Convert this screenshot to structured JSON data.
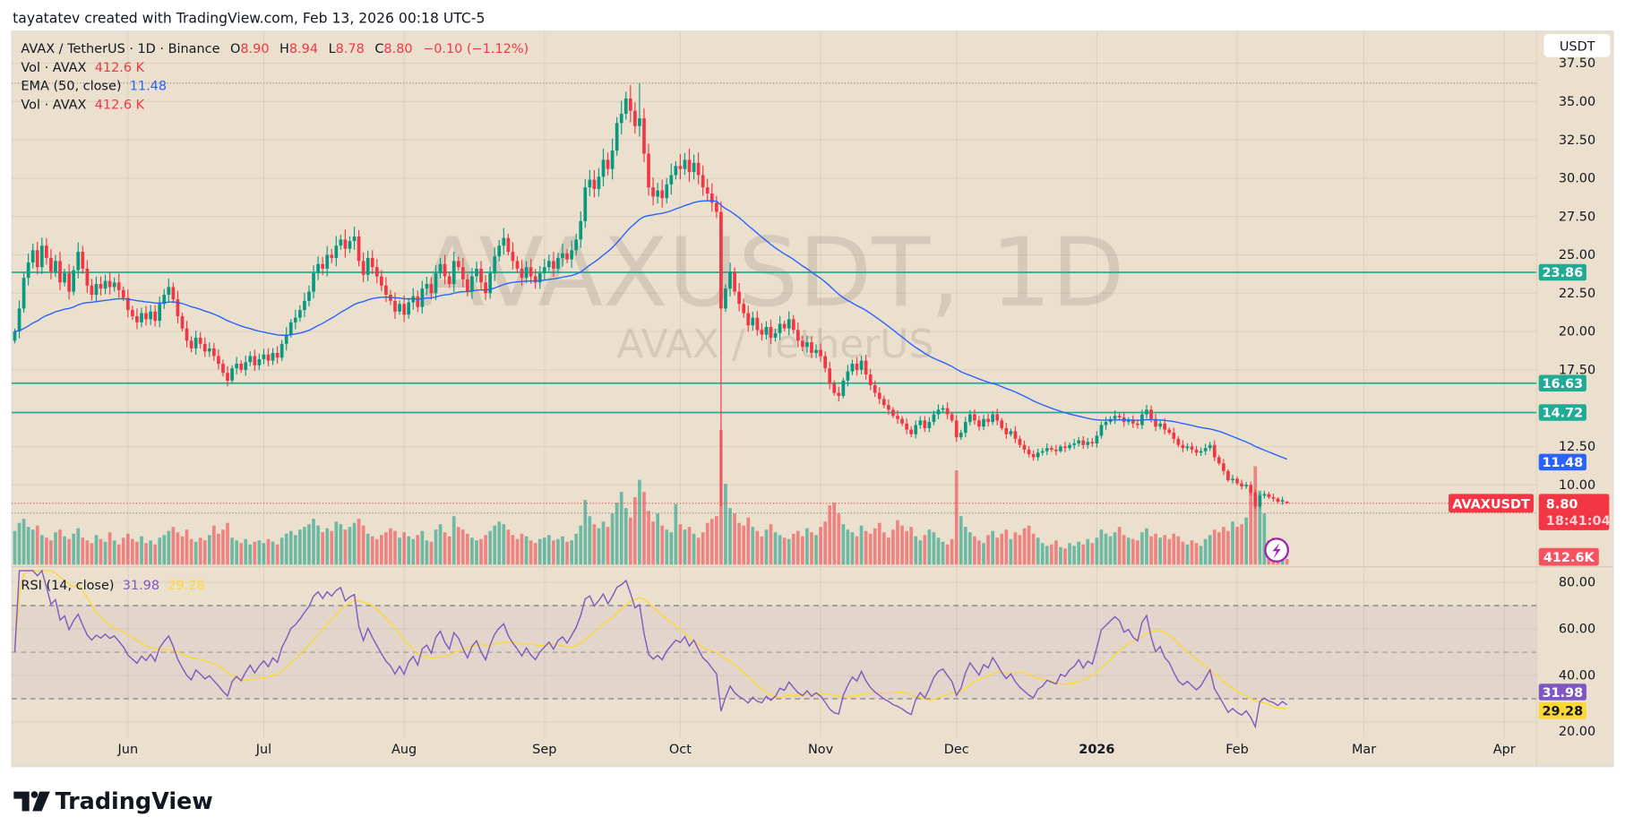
{
  "header": {
    "caption": "tayatatev created with TradingView.com, Feb 13, 2026 00:18 UTC-5"
  },
  "legend": {
    "symbol": "AVAX / TetherUS · 1D · Binance",
    "o_label": "O",
    "o": "8.90",
    "h_label": "H",
    "h": "8.94",
    "l_label": "L",
    "l": "8.78",
    "c_label": "C",
    "c": "8.80",
    "change": "−0.10 (−1.12%)",
    "vol1_label": "Vol · AVAX",
    "vol1_value": "412.6 K",
    "ema_label": "EMA (50, close)",
    "ema_value": "11.48",
    "vol2_label": "Vol · AVAX",
    "vol2_value": "412.6 K",
    "rsi_label": "RSI (14, close)",
    "rsi_value": "31.98",
    "rsi_ma_value": "29.28"
  },
  "watermark": {
    "line1": "AVAXUSDT, 1D",
    "line2": "AVAX / TetherUS"
  },
  "currency_button": "USDT",
  "brand": "TradingView",
  "colors": {
    "up": "#089981",
    "down": "#f23645",
    "ema": "#2962ff",
    "hline": "#22ab94",
    "rsi": "#7e57c2",
    "rsi_ma": "#fdd835",
    "background": "#ebe0cd"
  },
  "tags": {
    "symbol_tag": "AVAXUSDT",
    "last_price": "8.80",
    "countdown": "18:41:04",
    "ema": "11.48",
    "volume": "412.6K",
    "rsi": "31.98",
    "rsi_ma": "29.28"
  },
  "icons": {
    "alert": "lightning-icon"
  },
  "chart_data": {
    "type": "candlestick",
    "interval": "1D",
    "start_date": "2025-05-07",
    "close": [
      20.0,
      21.5,
      23.5,
      24.5,
      25.3,
      24.2,
      25.6,
      24.8,
      23.9,
      24.6,
      23.2,
      23.8,
      22.6,
      24.0,
      25.2,
      24.1,
      23.0,
      22.4,
      23.1,
      22.8,
      23.3,
      22.9,
      23.2,
      22.7,
      22.2,
      21.4,
      21.0,
      20.6,
      21.2,
      20.8,
      21.3,
      20.7,
      21.8,
      22.4,
      22.9,
      22.1,
      21.0,
      20.2,
      19.4,
      18.9,
      19.6,
      19.2,
      18.7,
      18.9,
      18.4,
      17.9,
      17.3,
      16.8,
      17.6,
      17.9,
      17.5,
      18.0,
      18.4,
      17.8,
      18.2,
      18.5,
      18.1,
      18.6,
      18.3,
      19.2,
      19.8,
      20.6,
      20.9,
      21.4,
      22.0,
      22.6,
      23.8,
      24.4,
      24.1,
      25.0,
      24.8,
      25.6,
      26.0,
      25.4,
      25.9,
      26.2,
      24.6,
      23.7,
      24.8,
      24.2,
      23.6,
      23.0,
      22.4,
      22.0,
      21.3,
      21.8,
      21.1,
      21.9,
      22.3,
      21.6,
      22.8,
      23.1,
      22.5,
      23.8,
      24.4,
      23.6,
      23.1,
      24.6,
      24.2,
      23.4,
      22.6,
      23.6,
      24.1,
      23.2,
      22.5,
      23.8,
      24.9,
      25.6,
      26.1,
      25.2,
      24.6,
      24.1,
      23.5,
      24.2,
      23.6,
      23.2,
      23.8,
      24.2,
      24.6,
      24.1,
      24.8,
      25.1,
      24.7,
      25.3,
      26.0,
      27.2,
      29.4,
      29.9,
      29.3,
      30.1,
      31.2,
      30.6,
      31.8,
      33.6,
      34.2,
      35.2,
      34.4,
      33.4,
      33.9,
      31.6,
      29.4,
      28.8,
      29.2,
      28.7,
      29.6,
      30.2,
      30.8,
      30.6,
      31.2,
      30.4,
      31.0,
      30.2,
      29.4,
      29.0,
      28.4,
      27.8,
      21.5,
      22.8,
      23.9,
      22.6,
      21.8,
      21.2,
      20.4,
      20.9,
      20.1,
      19.8,
      20.3,
      19.6,
      19.9,
      20.5,
      20.2,
      20.8,
      20.1,
      19.4,
      19.0,
      19.3,
      18.6,
      18.8,
      18.4,
      17.6,
      16.6,
      16.0,
      15.8,
      16.8,
      17.4,
      17.9,
      17.5,
      18.1,
      17.2,
      16.5,
      16.0,
      15.6,
      15.2,
      14.9,
      14.5,
      14.3,
      14.0,
      13.6,
      13.3,
      13.9,
      14.2,
      13.7,
      14.1,
      14.6,
      14.9,
      15.0,
      14.6,
      14.2,
      13.1,
      13.4,
      14.1,
      14.6,
      14.2,
      13.8,
      14.3,
      14.1,
      14.6,
      14.2,
      13.7,
      13.3,
      13.5,
      13.0,
      12.6,
      12.3,
      12.0,
      11.8,
      12.1,
      12.2,
      12.4,
      12.3,
      12.2,
      12.5,
      12.4,
      12.6,
      12.7,
      12.9,
      12.6,
      12.8,
      12.7,
      13.2,
      13.9,
      14.1,
      14.3,
      14.5,
      14.4,
      14.1,
      14.2,
      14.0,
      13.9,
      14.6,
      14.9,
      14.3,
      13.8,
      14.0,
      13.6,
      13.4,
      13.0,
      12.6,
      12.4,
      12.5,
      12.3,
      12.1,
      12.2,
      12.4,
      12.6,
      11.8,
      11.4,
      10.9,
      10.3,
      10.4,
      10.1,
      9.9,
      10.0,
      9.5,
      8.6,
      9.3,
      9.4,
      9.2,
      9.1,
      8.9,
      9.0,
      8.8
    ],
    "volume_millions": [
      2.5,
      3.1,
      3.4,
      2.8,
      2.6,
      2.9,
      2.2,
      2.0,
      1.8,
      2.4,
      2.6,
      2.1,
      1.9,
      2.3,
      2.7,
      2.0,
      1.8,
      1.6,
      2.2,
      1.9,
      1.7,
      2.4,
      1.8,
      1.5,
      2.0,
      2.3,
      1.9,
      1.7,
      2.1,
      1.6,
      1.8,
      1.5,
      2.0,
      2.2,
      2.5,
      2.8,
      2.4,
      2.1,
      2.6,
      1.9,
      1.7,
      2.0,
      1.8,
      2.2,
      2.9,
      2.3,
      2.6,
      3.1,
      2.0,
      1.8,
      1.6,
      1.9,
      1.5,
      1.7,
      1.8,
      1.6,
      1.9,
      1.7,
      1.5,
      2.0,
      2.3,
      2.5,
      2.2,
      2.6,
      2.8,
      3.0,
      3.4,
      2.9,
      2.4,
      2.7,
      2.5,
      3.2,
      3.0,
      2.6,
      2.8,
      3.1,
      3.4,
      2.9,
      2.3,
      2.1,
      1.9,
      2.2,
      2.4,
      2.7,
      2.5,
      2.0,
      2.4,
      2.1,
      1.9,
      2.2,
      2.5,
      1.8,
      1.7,
      2.6,
      3.0,
      2.4,
      2.1,
      3.6,
      2.8,
      2.6,
      2.3,
      2.0,
      1.8,
      1.9,
      2.2,
      2.5,
      2.9,
      3.2,
      3.0,
      2.6,
      2.2,
      1.9,
      2.3,
      2.1,
      1.8,
      1.6,
      1.9,
      2.0,
      2.2,
      1.8,
      1.9,
      2.1,
      1.7,
      1.8,
      2.3,
      2.9,
      4.8,
      3.6,
      3.0,
      2.7,
      3.2,
      2.8,
      3.8,
      4.6,
      5.4,
      4.2,
      3.5,
      5.0,
      6.3,
      5.4,
      4.0,
      3.2,
      3.8,
      2.9,
      2.6,
      2.4,
      4.5,
      3.0,
      2.6,
      2.8,
      2.3,
      2.0,
      2.4,
      3.1,
      3.4,
      3.6,
      10.0,
      6.0,
      4.2,
      3.8,
      3.1,
      2.9,
      3.5,
      2.8,
      2.5,
      2.1,
      2.6,
      3.0,
      2.4,
      2.2,
      2.0,
      1.9,
      2.3,
      2.5,
      2.1,
      2.7,
      2.4,
      2.2,
      2.8,
      3.2,
      4.4,
      4.6,
      3.8,
      3.0,
      2.6,
      2.4,
      2.1,
      2.9,
      2.5,
      2.3,
      2.7,
      3.1,
      2.4,
      2.0,
      2.6,
      3.3,
      2.9,
      2.5,
      2.8,
      2.1,
      1.8,
      2.2,
      2.6,
      2.4,
      2.0,
      1.7,
      1.5,
      1.9,
      7.0,
      3.6,
      2.8,
      2.4,
      2.1,
      1.8,
      1.6,
      2.2,
      2.5,
      2.0,
      2.3,
      2.6,
      1.9,
      2.4,
      2.2,
      2.7,
      2.9,
      2.3,
      2.0,
      1.6,
      1.4,
      1.5,
      1.8,
      1.3,
      1.2,
      1.6,
      1.4,
      1.7,
      1.5,
      1.9,
      1.6,
      2.0,
      2.6,
      2.3,
      2.1,
      2.4,
      2.8,
      2.2,
      2.0,
      1.9,
      1.8,
      2.4,
      2.7,
      2.1,
      2.3,
      2.0,
      2.2,
      1.9,
      2.3,
      2.1,
      1.7,
      1.5,
      1.8,
      1.6,
      1.4,
      1.9,
      2.2,
      2.6,
      2.4,
      2.8,
      2.5,
      3.2,
      2.8,
      3.0,
      3.5,
      5.8,
      7.3,
      5.5,
      3.8,
      1.8,
      2.0,
      2.0,
      1.6,
      0.41
    ],
    "wick_extremes": [
      {
        "date": "2025-09-22",
        "high": 36.2
      },
      {
        "date": "2025-10-10",
        "low": 8.6
      }
    ],
    "last_ohlc": {
      "open": 8.9,
      "high": 8.94,
      "low": 8.78,
      "close": 8.8
    },
    "horizontal_lines": [
      23.86,
      16.63,
      14.72
    ],
    "price_ticks": [
      "37.50",
      "35.00",
      "32.50",
      "30.00",
      "27.50",
      "25.00",
      "22.50",
      "20.00",
      "17.50",
      "12.50",
      "10.00"
    ],
    "rsi_ticks": [
      "80.00",
      "60.00",
      "40.00",
      "20.00"
    ],
    "rsi_levels": {
      "upper": 70,
      "middle": 50,
      "lower": 30
    },
    "x_ticks": [
      {
        "text": "Jun",
        "date": "2025-06-01"
      },
      {
        "text": "Jul",
        "date": "2025-07-01"
      },
      {
        "text": "Aug",
        "date": "2025-08-01"
      },
      {
        "text": "Sep",
        "date": "2025-09-01"
      },
      {
        "text": "Oct",
        "date": "2025-10-01"
      },
      {
        "text": "Nov",
        "date": "2025-11-01"
      },
      {
        "text": "Dec",
        "date": "2025-12-01"
      },
      {
        "text": "2026",
        "date": "2026-01-01",
        "bold": true
      },
      {
        "text": "Feb",
        "date": "2026-02-01"
      },
      {
        "text": "Mar",
        "date": "2026-03-01"
      },
      {
        "text": "Apr",
        "date": "2026-04-01"
      }
    ],
    "indicators": [
      "EMA 50 (close)",
      "Volume",
      "RSI 14 with MA"
    ],
    "price_scale": "linear",
    "grid": true
  }
}
